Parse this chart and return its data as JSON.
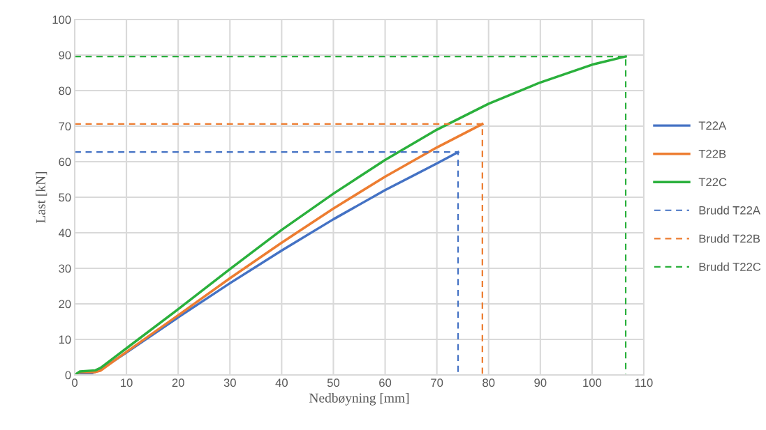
{
  "chart_data": {
    "type": "line",
    "xlabel": "Nedbøyning [mm]",
    "ylabel": "Last [kN]",
    "xlim": [
      0,
      110
    ],
    "xticks": [
      0,
      10,
      20,
      30,
      40,
      50,
      60,
      70,
      80,
      90,
      100,
      110
    ],
    "ylim": [
      0,
      100
    ],
    "yticks": [
      0,
      10,
      20,
      30,
      40,
      50,
      60,
      70,
      80,
      90,
      100
    ],
    "grid": true,
    "legend": "right",
    "marker": "none",
    "series": [
      {
        "name": "T22A",
        "color": "#4472c4",
        "line_style": "solid",
        "x": [
          0,
          1,
          3,
          5,
          10,
          20,
          30,
          40,
          50,
          60,
          70,
          74.1
        ],
        "values": [
          0,
          0.3,
          0.3,
          1.5,
          6.3,
          16.2,
          25.8,
          35,
          43.8,
          52,
          59.5,
          62.7
        ]
      },
      {
        "name": "T22B",
        "color": "#ed7d31",
        "line_style": "solid",
        "x": [
          0,
          1,
          4,
          5,
          10,
          20,
          30,
          40,
          50,
          60,
          70,
          78.8
        ],
        "values": [
          0,
          0.8,
          0.8,
          1.2,
          6.5,
          16.8,
          27.2,
          37.2,
          46.8,
          55.8,
          64,
          70.6
        ]
      },
      {
        "name": "T22C",
        "color": "#2ab03c",
        "line_style": "solid",
        "x": [
          0,
          1,
          4,
          5,
          10,
          20,
          30,
          40,
          50,
          60,
          70,
          80,
          90,
          100,
          106.5
        ],
        "values": [
          0,
          1,
          1.3,
          2,
          7.5,
          18.5,
          29.8,
          40.8,
          51,
          60.5,
          69,
          76.3,
          82.3,
          87.3,
          89.6
        ]
      },
      {
        "name": "Brudd T22A",
        "color": "#4472c4",
        "line_style": "dashed",
        "x": [
          0,
          74.1,
          74.1
        ],
        "values": [
          62.7,
          62.7,
          0
        ]
      },
      {
        "name": "Brudd T22B",
        "color": "#ed7d31",
        "line_style": "dashed",
        "x": [
          0,
          78.8,
          78.8
        ],
        "values": [
          70.6,
          70.6,
          0
        ]
      },
      {
        "name": "Brudd T22C",
        "color": "#2ab03c",
        "line_style": "dashed",
        "x": [
          0,
          106.5,
          106.5
        ],
        "values": [
          89.6,
          89.6,
          0
        ]
      }
    ]
  }
}
